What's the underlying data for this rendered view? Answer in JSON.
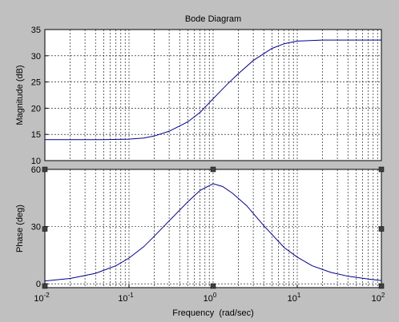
{
  "figure": {
    "background": "#c0c0c0",
    "axes_background": "#ffffff",
    "line_color": "#00008b",
    "grid_color": "#000000"
  },
  "chart_data": [
    {
      "type": "line",
      "title": "Bode Diagram",
      "xlabel": "",
      "ylabel": "Magnitude (dB)",
      "xscale": "log",
      "xlim": [
        0.01,
        100
      ],
      "ylim": [
        10,
        35
      ],
      "yticks": [
        10,
        15,
        20,
        25,
        30,
        35
      ],
      "grid": true,
      "x": [
        0.01,
        0.02,
        0.05,
        0.1,
        0.15,
        0.2,
        0.3,
        0.5,
        0.7,
        1,
        1.5,
        2,
        3,
        5,
        7,
        10,
        20,
        50,
        100
      ],
      "y": [
        14.0,
        14.0,
        14.0,
        14.1,
        14.3,
        14.7,
        15.6,
        17.4,
        19.2,
        21.8,
        24.7,
        26.6,
        29.1,
        31.4,
        32.3,
        32.8,
        33.0,
        33.0,
        33.0
      ]
    },
    {
      "type": "line",
      "title": "",
      "xlabel": "Frequency  (rad/sec)",
      "ylabel": "Phase (deg)",
      "xscale": "log",
      "xlim": [
        0.01,
        100
      ],
      "xticks": [
        0.01,
        0.1,
        1,
        10,
        100
      ],
      "xtick_labels": [
        {
          "base": "10",
          "exp": "-2"
        },
        {
          "base": "10",
          "exp": "-1"
        },
        {
          "base": "10",
          "exp": "0"
        },
        {
          "base": "10",
          "exp": "1"
        },
        {
          "base": "10",
          "exp": "2"
        }
      ],
      "ylim": [
        -2,
        60
      ],
      "yticks": [
        0,
        30,
        60
      ],
      "grid": true,
      "x": [
        0.01,
        0.02,
        0.04,
        0.07,
        0.1,
        0.15,
        0.2,
        0.3,
        0.5,
        0.7,
        1,
        1.3,
        1.7,
        2.5,
        4,
        7,
        10,
        15,
        25,
        40,
        70,
        100
      ],
      "y": [
        1.5,
        2.8,
        5.5,
        9.5,
        13.5,
        19.5,
        25,
        33,
        43,
        49,
        52.5,
        51,
        47.5,
        41,
        30.5,
        19,
        14,
        9.5,
        6,
        4,
        2.5,
        1.7
      ]
    }
  ]
}
